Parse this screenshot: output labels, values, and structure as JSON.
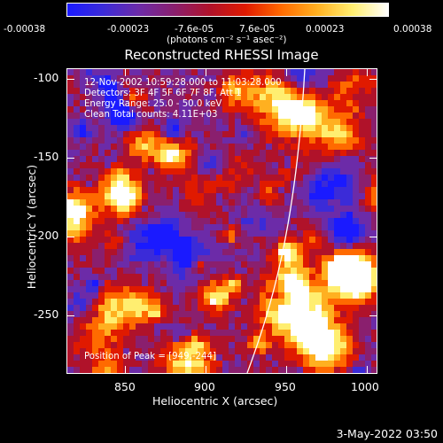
{
  "colorbar": {
    "tick_labels": [
      "-0.00038",
      "-0.00023",
      "-7.6e-05",
      "7.6e-05",
      "0.00023",
      "0.00038"
    ],
    "units": "(photons cm⁻² s⁻¹ asec⁻²)",
    "colors": [
      "#1a1aff",
      "#3b2bd8",
      "#6c2ba8",
      "#8a1f6e",
      "#b0122a",
      "#e01a00",
      "#ff6a00",
      "#ffb020",
      "#ffee70",
      "#ffffff"
    ]
  },
  "title": "Reconstructed RHESSI Image",
  "info": {
    "time_range": "12-Nov-2002 10:59:28.000 to 11:03:28.000",
    "detectors": "Detectors: 3F 4F 5F 6F 7F 8F, Att 1",
    "energy": "Energy Range: 25.0 - 50.0 keV",
    "clean": "Clean     Total counts: 4.11E+03",
    "peak": "Position of Peak = [949,-244]"
  },
  "axes": {
    "x_title": "Heliocentric X (arcsec)",
    "y_title": "Heliocentric Y (arcsec)",
    "x_ticks": [
      "850",
      "900",
      "950",
      "1000"
    ],
    "y_ticks": [
      "-100",
      "-150",
      "-200",
      "-250"
    ],
    "x_tick_values": [
      850,
      900,
      950,
      1000
    ],
    "y_tick_values": [
      -100,
      -150,
      -200,
      -250
    ],
    "x_range": [
      815,
      1005
    ],
    "y_range": [
      -288,
      -96
    ]
  },
  "timestamp": "3-May-2022 03:50",
  "limb_color": "#ffffff"
}
